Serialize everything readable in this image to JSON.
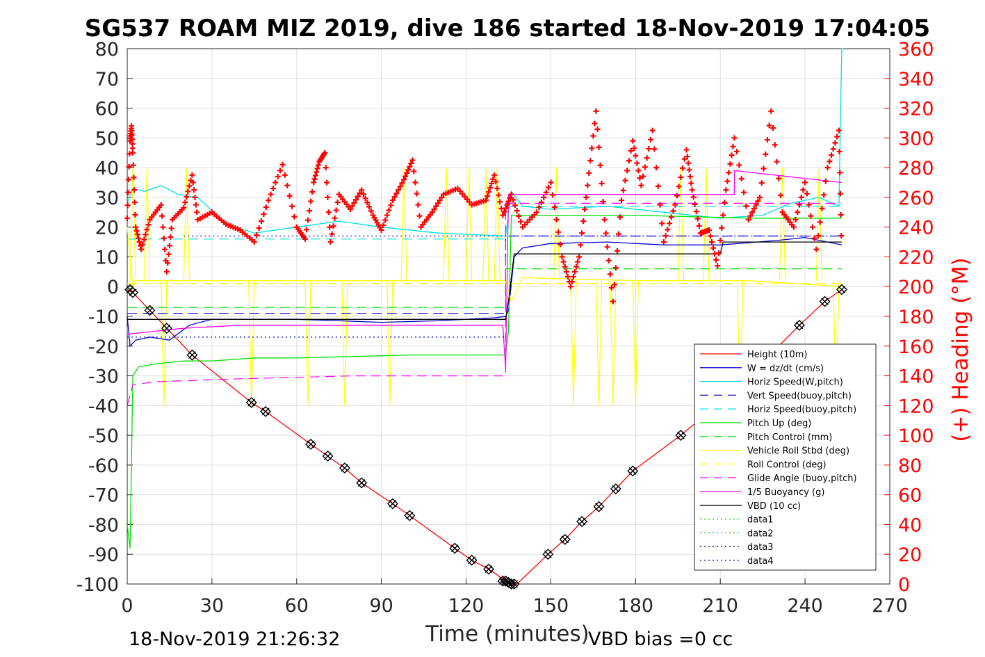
{
  "chart_data": {
    "type": "line",
    "title": "SG537 ROAM MIZ 2019, dive 186 started 18-Nov-2019 17:04:05",
    "xlabel": "Time (minutes)",
    "ylabel_right": "(+) Heading (°M)",
    "xlim": [
      0,
      270
    ],
    "ylim_left": [
      -100,
      80
    ],
    "ylim_right": [
      0,
      360
    ],
    "xticks": [
      "0",
      "30",
      "60",
      "90",
      "120",
      "150",
      "180",
      "210",
      "240",
      "270"
    ],
    "yticks_left": [
      "80",
      "70",
      "60",
      "50",
      "40",
      "30",
      "20",
      "10",
      "0",
      "-10",
      "-20",
      "-30",
      "-40",
      "-50",
      "-60",
      "-70",
      "-80",
      "-90",
      "-100"
    ],
    "yticks_right": [
      "360",
      "340",
      "320",
      "300",
      "280",
      "260",
      "240",
      "220",
      "200",
      "180",
      "160",
      "140",
      "120",
      "100",
      "80",
      "60",
      "40",
      "20",
      "0"
    ],
    "grid": true,
    "legend_position": "lower-right",
    "footer_left": "18-Nov-2019 21:26:32",
    "footer_right": "VBD bias =0 cc",
    "series": [
      {
        "name": "Height (10m)",
        "color": "#ff0000",
        "style": "solid",
        "x": [
          0,
          2,
          8,
          14,
          23,
          44,
          49,
          65,
          71,
          77,
          83,
          94,
          100,
          116,
          122,
          128,
          134,
          136,
          138,
          149,
          155,
          161,
          167,
          173,
          179,
          196,
          215,
          238,
          247,
          253
        ],
        "y": [
          -1,
          -2,
          -8,
          -14,
          -23,
          -39,
          -42,
          -53,
          -57,
          -61,
          -66,
          -73,
          -77,
          -88,
          -92,
          -95,
          -99,
          -100,
          -100,
          -90,
          -85,
          -79,
          -74,
          -68,
          -62,
          -50,
          -35,
          -13,
          -5,
          -1
        ]
      },
      {
        "name": "W = dz/dt (cm/s)",
        "color": "#0000cd",
        "style": "solid",
        "x": [
          0,
          1,
          3,
          8,
          15,
          22,
          30,
          45,
          60,
          75,
          90,
          110,
          130,
          134,
          135,
          137,
          140,
          150,
          170,
          190,
          210,
          230,
          240,
          253
        ],
        "y": [
          -10,
          -20,
          -18,
          -17,
          -18,
          -13,
          -11,
          -11,
          -11,
          -11.5,
          -12,
          -11.5,
          -10.5,
          -10,
          -8,
          10,
          13,
          14.5,
          15,
          14,
          14,
          15.5,
          16.5,
          14
        ]
      },
      {
        "name": "Horiz Speed(W,pitch)",
        "color": "#00e0e0",
        "style": "solid",
        "x": [
          0,
          2,
          6,
          12,
          18,
          25,
          35,
          45,
          60,
          75,
          90,
          110,
          134,
          136,
          140,
          150,
          170,
          190,
          210,
          225,
          235,
          245,
          252,
          253,
          253.5
        ],
        "y": [
          28,
          33,
          32,
          34,
          31,
          30,
          21,
          18,
          20,
          22,
          20,
          18,
          17,
          32,
          27,
          26,
          27,
          25,
          23,
          24,
          28,
          30,
          27,
          80,
          80
        ]
      },
      {
        "name": "Vert Speed(buoy,pitch)",
        "color": "#0000cd",
        "style": "dash",
        "x": [
          0,
          134,
          134,
          253
        ],
        "y": [
          -9,
          -9,
          17,
          17
        ]
      },
      {
        "name": "Horiz Speed(buoy,pitch)",
        "color": "#00e0e0",
        "style": "dash",
        "x": [
          0,
          134,
          134,
          253
        ],
        "y": [
          16,
          16,
          27,
          27
        ]
      },
      {
        "name": "Pitch Up (deg)",
        "color": "#00e000",
        "style": "solid",
        "x": [
          0,
          1,
          2,
          4,
          10,
          20,
          30,
          45,
          60,
          80,
          100,
          120,
          134,
          135,
          136,
          140,
          160,
          180,
          200,
          220,
          240,
          253
        ],
        "y": [
          -80,
          -88,
          -30,
          -27,
          -26,
          -25,
          -25,
          -24,
          -24,
          -23.5,
          -23,
          -23,
          -23,
          -15,
          24,
          24,
          24,
          24,
          23.5,
          23,
          23,
          23
        ]
      },
      {
        "name": "Pitch Control (mm)",
        "color": "#00e000",
        "style": "dash",
        "x": [
          0,
          134,
          134,
          253
        ],
        "y": [
          -7,
          -7,
          6,
          6
        ]
      },
      {
        "name": "Vehicle Roll Stbd (deg)",
        "color": "#ffff00",
        "style": "solid",
        "x": [
          0,
          2,
          3,
          10,
          40,
          80,
          120,
          134,
          136,
          140,
          180,
          220,
          253
        ],
        "y": [
          20,
          0,
          2,
          2,
          2,
          2,
          2,
          2,
          -5,
          3,
          2,
          2,
          0
        ]
      },
      {
        "name": "Roll Control (deg)",
        "color": "#ffff00",
        "style": "dash",
        "x": [
          0,
          134,
          134,
          253
        ],
        "y": [
          1,
          1,
          1,
          1
        ]
      },
      {
        "name": "Glide Angle (buoy,pitch)",
        "color": "#ff00ff",
        "style": "dash",
        "x": [
          0,
          2,
          10,
          40,
          80,
          120,
          134,
          134,
          253
        ],
        "y": [
          -40,
          -33,
          -32,
          -31,
          -30,
          -30,
          -30,
          28,
          28
        ]
      },
      {
        "name": "1/5 Buoyancy (g)",
        "color": "#ff00ff",
        "style": "solid",
        "x": [
          0,
          10,
          20,
          40,
          80,
          133,
          134,
          135,
          215,
          215,
          253
        ],
        "y": [
          -16,
          -15,
          -14,
          -13,
          -13,
          -13,
          -28,
          31,
          31,
          39,
          35
        ]
      },
      {
        "name": "VBD (10 cc)",
        "color": "#000000",
        "style": "solid",
        "x": [
          0,
          134,
          135,
          137,
          210,
          211,
          253
        ],
        "y": [
          -11,
          -11,
          -5,
          11,
          11,
          15,
          15
        ]
      },
      {
        "name": "data1",
        "color": "#00c000",
        "style": "dot",
        "x": [],
        "y": []
      },
      {
        "name": "data2",
        "color": "#00c000",
        "style": "dot",
        "x": [],
        "y": []
      },
      {
        "name": "data3",
        "color": "#0000cd",
        "style": "dot",
        "x": [
          0,
          134
        ],
        "y": [
          -17,
          -17
        ]
      },
      {
        "name": "data4",
        "color": "#0000cd",
        "style": "dot",
        "x": [
          20,
          253
        ],
        "y": [
          17,
          17
        ]
      }
    ],
    "heading": {
      "axis": "right",
      "marker": "+",
      "color": "#ff0000",
      "x": [
        0,
        1,
        1.5,
        2,
        3,
        5,
        8,
        12,
        14,
        16,
        20,
        23,
        25,
        30,
        35,
        40,
        45,
        50,
        55,
        60,
        63,
        66,
        68,
        70,
        72,
        75,
        79,
        83,
        87,
        90,
        94,
        98,
        101,
        104,
        108,
        112,
        117,
        122,
        127,
        130,
        133,
        136,
        140,
        145,
        150,
        154,
        157,
        160,
        163,
        166,
        169,
        172,
        175,
        179,
        182,
        186,
        190,
        194,
        198,
        200,
        203,
        206,
        209,
        212,
        215,
        220,
        224,
        228,
        232,
        236,
        240,
        244,
        248,
        252,
        253
      ],
      "y": [
        246,
        298,
        308,
        290,
        240,
        225,
        245,
        255,
        210,
        245,
        253,
        275,
        245,
        250,
        242,
        238,
        230,
        258,
        282,
        240,
        232,
        270,
        284,
        290,
        230,
        262,
        252,
        265,
        248,
        238,
        258,
        272,
        285,
        240,
        250,
        262,
        266,
        255,
        258,
        275,
        248,
        262,
        240,
        250,
        270,
        220,
        200,
        220,
        268,
        318,
        245,
        190,
        258,
        298,
        268,
        305,
        230,
        255,
        292,
        265,
        236,
        238,
        214,
        265,
        300,
        245,
        260,
        318,
        250,
        240,
        270,
        225,
        280,
        305,
        220
      ]
    },
    "depth_markers": {
      "marker": "diamond-cross",
      "color": "#000000",
      "x": [
        1,
        2,
        8,
        14,
        23,
        44,
        49,
        65,
        71,
        77,
        83,
        94,
        100,
        116,
        122,
        128,
        133,
        134,
        135,
        136,
        137,
        149,
        155,
        161,
        167,
        173,
        179,
        196,
        238,
        247,
        253
      ],
      "y": [
        -1,
        -2,
        -8,
        -14,
        -23,
        -39,
        -42,
        -53,
        -57,
        -61,
        -66,
        -73,
        -77,
        -88,
        -92,
        -95,
        -99,
        -99,
        -99.5,
        -100,
        -100,
        -90,
        -85,
        -79,
        -74,
        -68,
        -62,
        -50,
        -13,
        -5,
        -1
      ]
    },
    "roll_spikes": {
      "color": "#ffff00",
      "x": [
        2,
        7,
        13,
        21,
        44,
        64,
        77,
        93,
        98,
        113,
        121,
        127,
        131,
        152,
        158,
        167,
        172,
        180,
        196,
        205,
        217,
        232,
        245,
        251
      ],
      "dir": [
        "up",
        "up",
        "down",
        "up",
        "down",
        "down",
        "down",
        "down",
        "up",
        "up",
        "up",
        "up",
        "up",
        "up",
        "down",
        "down",
        "down",
        "down",
        "up",
        "up",
        "down",
        "up",
        "up",
        "down"
      ]
    }
  }
}
